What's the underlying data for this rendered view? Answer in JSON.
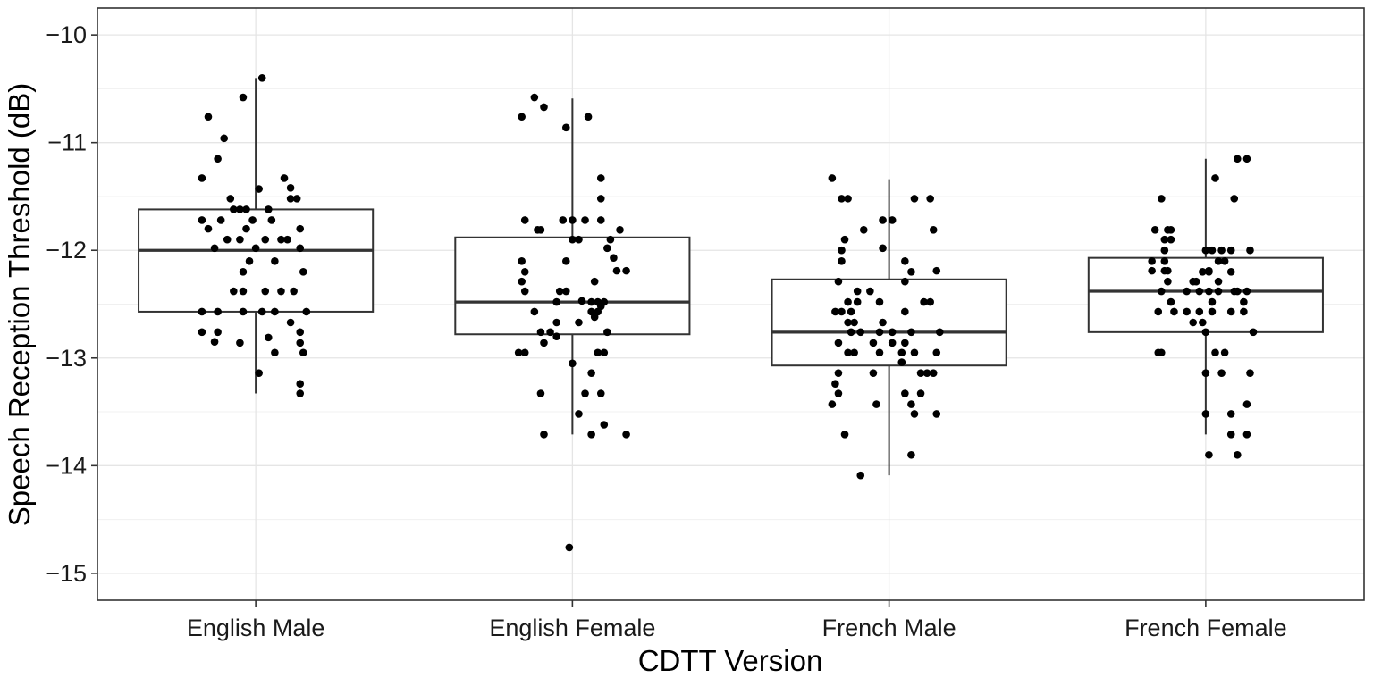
{
  "chart_data": {
    "type": "boxplot",
    "title": "",
    "xlabel": "CDTT Version",
    "ylabel": "Speech Reception Threshold (dB)",
    "ylim": [
      -15.25,
      -9.75
    ],
    "yticks": [
      -10,
      -11,
      -12,
      -13,
      -14,
      -15
    ],
    "ytick_labels": [
      "−10",
      "−11",
      "−12",
      "−13",
      "−14",
      "−15"
    ],
    "grid": true,
    "legend": "none",
    "categories": [
      "English Male",
      "English Female",
      "French Male",
      "French Female"
    ],
    "boxes": [
      {
        "q1": -12.57,
        "median": -12.0,
        "q3": -11.62,
        "whisker_low": -13.33,
        "whisker_high": -10.4
      },
      {
        "q1": -12.78,
        "median": -12.48,
        "q3": -11.88,
        "whisker_low": -13.71,
        "whisker_high": -10.59
      },
      {
        "q1": -13.07,
        "median": -12.76,
        "q3": -12.27,
        "whisker_low": -14.09,
        "whisker_high": -11.34
      },
      {
        "q1": -12.76,
        "median": -12.38,
        "q3": -12.07,
        "whisker_low": -13.71,
        "whisker_high": -11.15
      }
    ],
    "points": [
      [
        [
          0.02,
          -10.4
        ],
        [
          -0.04,
          -10.58
        ],
        [
          -0.15,
          -10.76
        ],
        [
          -0.1,
          -10.96
        ],
        [
          -0.12,
          -11.15
        ],
        [
          -0.17,
          -11.33
        ],
        [
          0.09,
          -11.33
        ],
        [
          0.11,
          -11.42
        ],
        [
          0.11,
          -11.52
        ],
        [
          0.13,
          -11.52
        ],
        [
          -0.08,
          -11.52
        ],
        [
          0.01,
          -11.43
        ],
        [
          -0.07,
          -11.62
        ],
        [
          -0.05,
          -11.62
        ],
        [
          -0.03,
          -11.62
        ],
        [
          0.04,
          -11.62
        ],
        [
          0.05,
          -11.72
        ],
        [
          -0.17,
          -11.72
        ],
        [
          -0.11,
          -11.72
        ],
        [
          -0.01,
          -11.72
        ],
        [
          0.03,
          -11.9
        ],
        [
          0.08,
          -11.9
        ],
        [
          0.1,
          -11.9
        ],
        [
          -0.05,
          -11.9
        ],
        [
          -0.09,
          -11.9
        ],
        [
          -0.15,
          -11.8
        ],
        [
          -0.03,
          -11.8
        ],
        [
          0.14,
          -11.8
        ],
        [
          0.0,
          -11.98
        ],
        [
          0.14,
          -11.98
        ],
        [
          -0.13,
          -11.98
        ],
        [
          -0.02,
          -12.1
        ],
        [
          0.06,
          -12.1
        ],
        [
          -0.04,
          -12.2
        ],
        [
          0.15,
          -12.2
        ],
        [
          0.08,
          -12.38
        ],
        [
          0.12,
          -12.38
        ],
        [
          -0.07,
          -12.38
        ],
        [
          -0.04,
          -12.38
        ],
        [
          0.03,
          -12.38
        ],
        [
          -0.17,
          -12.57
        ],
        [
          -0.12,
          -12.57
        ],
        [
          -0.04,
          -12.57
        ],
        [
          0.02,
          -12.57
        ],
        [
          0.06,
          -12.57
        ],
        [
          0.16,
          -12.57
        ],
        [
          0.11,
          -12.67
        ],
        [
          -0.17,
          -12.76
        ],
        [
          -0.12,
          -12.76
        ],
        [
          0.14,
          -12.76
        ],
        [
          0.04,
          -12.81
        ],
        [
          -0.13,
          -12.85
        ],
        [
          -0.05,
          -12.86
        ],
        [
          0.14,
          -12.86
        ],
        [
          0.06,
          -12.95
        ],
        [
          0.15,
          -12.95
        ],
        [
          0.01,
          -13.14
        ],
        [
          0.14,
          -13.24
        ],
        [
          0.14,
          -13.33
        ]
      ],
      [
        [
          -0.12,
          -10.58
        ],
        [
          -0.09,
          -10.67
        ],
        [
          -0.16,
          -10.76
        ],
        [
          0.05,
          -10.76
        ],
        [
          -0.02,
          -10.86
        ],
        [
          0.09,
          -11.33
        ],
        [
          0.09,
          -11.52
        ],
        [
          -0.15,
          -11.72
        ],
        [
          -0.03,
          -11.72
        ],
        [
          0.0,
          -11.72
        ],
        [
          0.04,
          -11.72
        ],
        [
          0.09,
          -11.72
        ],
        [
          -0.11,
          -11.81
        ],
        [
          -0.1,
          -11.81
        ],
        [
          0.15,
          -11.81
        ],
        [
          0.0,
          -11.9
        ],
        [
          0.02,
          -11.9
        ],
        [
          0.12,
          -11.9
        ],
        [
          0.11,
          -11.98
        ],
        [
          0.13,
          -12.07
        ],
        [
          -0.02,
          -12.1
        ],
        [
          -0.16,
          -12.1
        ],
        [
          0.14,
          -12.19
        ],
        [
          0.17,
          -12.19
        ],
        [
          -0.15,
          -12.2
        ],
        [
          0.07,
          -12.29
        ],
        [
          -0.16,
          -12.29
        ],
        [
          -0.15,
          -12.38
        ],
        [
          -0.04,
          -12.38
        ],
        [
          -0.02,
          -12.38
        ],
        [
          0.03,
          -12.47
        ],
        [
          0.06,
          -12.48
        ],
        [
          0.08,
          -12.48
        ],
        [
          0.1,
          -12.48
        ],
        [
          0.09,
          -12.52
        ],
        [
          0.06,
          -12.57
        ],
        [
          0.08,
          -12.57
        ],
        [
          -0.05,
          -12.48
        ],
        [
          -0.12,
          -12.57
        ],
        [
          0.07,
          -12.62
        ],
        [
          0.02,
          -12.67
        ],
        [
          -0.05,
          -12.67
        ],
        [
          0.11,
          -12.76
        ],
        [
          -0.07,
          -12.76
        ],
        [
          -0.1,
          -12.76
        ],
        [
          -0.05,
          -12.8
        ],
        [
          -0.09,
          -12.86
        ],
        [
          -0.17,
          -12.95
        ],
        [
          -0.15,
          -12.95
        ],
        [
          0.08,
          -12.95
        ],
        [
          0.1,
          -12.95
        ],
        [
          0.0,
          -13.05
        ],
        [
          0.06,
          -13.14
        ],
        [
          -0.1,
          -13.33
        ],
        [
          0.04,
          -13.33
        ],
        [
          0.09,
          -13.33
        ],
        [
          0.02,
          -13.52
        ],
        [
          0.1,
          -13.62
        ],
        [
          -0.09,
          -13.71
        ],
        [
          0.06,
          -13.71
        ],
        [
          0.17,
          -13.71
        ],
        [
          -0.01,
          -14.76
        ]
      ],
      [
        [
          -0.18,
          -11.33
        ],
        [
          -0.15,
          -11.52
        ],
        [
          -0.13,
          -11.52
        ],
        [
          0.08,
          -11.52
        ],
        [
          0.13,
          -11.52
        ],
        [
          -0.02,
          -11.72
        ],
        [
          0.01,
          -11.72
        ],
        [
          -0.08,
          -11.81
        ],
        [
          0.14,
          -11.81
        ],
        [
          -0.14,
          -11.9
        ],
        [
          -0.02,
          -11.98
        ],
        [
          -0.15,
          -12.0
        ],
        [
          -0.15,
          -12.1
        ],
        [
          0.05,
          -12.1
        ],
        [
          0.15,
          -12.19
        ],
        [
          0.07,
          -12.2
        ],
        [
          -0.16,
          -12.29
        ],
        [
          0.05,
          -12.29
        ],
        [
          -0.06,
          -12.38
        ],
        [
          -0.1,
          -12.38
        ],
        [
          -0.13,
          -12.48
        ],
        [
          -0.1,
          -12.48
        ],
        [
          -0.03,
          -12.48
        ],
        [
          0.11,
          -12.48
        ],
        [
          0.13,
          -12.48
        ],
        [
          -0.17,
          -12.57
        ],
        [
          -0.15,
          -12.57
        ],
        [
          -0.12,
          -12.57
        ],
        [
          0.05,
          -12.57
        ],
        [
          -0.13,
          -12.67
        ],
        [
          -0.11,
          -12.67
        ],
        [
          -0.02,
          -12.67
        ],
        [
          -0.12,
          -12.76
        ],
        [
          -0.09,
          -12.76
        ],
        [
          -0.03,
          -12.76
        ],
        [
          0.01,
          -12.76
        ],
        [
          0.07,
          -12.76
        ],
        [
          0.16,
          -12.76
        ],
        [
          -0.16,
          -12.86
        ],
        [
          -0.05,
          -12.86
        ],
        [
          0.01,
          -12.86
        ],
        [
          0.05,
          -12.86
        ],
        [
          -0.13,
          -12.95
        ],
        [
          -0.11,
          -12.95
        ],
        [
          -0.03,
          -12.95
        ],
        [
          0.04,
          -12.95
        ],
        [
          0.08,
          -12.95
        ],
        [
          0.15,
          -12.95
        ],
        [
          0.04,
          -13.04
        ],
        [
          -0.16,
          -13.14
        ],
        [
          -0.05,
          -13.14
        ],
        [
          0.1,
          -13.14
        ],
        [
          0.12,
          -13.14
        ],
        [
          0.14,
          -13.14
        ],
        [
          -0.17,
          -13.24
        ],
        [
          -0.16,
          -13.33
        ],
        [
          0.05,
          -13.33
        ],
        [
          0.1,
          -13.33
        ],
        [
          -0.04,
          -13.43
        ],
        [
          -0.18,
          -13.43
        ],
        [
          0.07,
          -13.43
        ],
        [
          0.08,
          -13.52
        ],
        [
          0.15,
          -13.52
        ],
        [
          -0.14,
          -13.71
        ],
        [
          0.07,
          -13.9
        ],
        [
          -0.09,
          -14.09
        ]
      ],
      [
        [
          0.13,
          -11.15
        ],
        [
          0.1,
          -11.15
        ],
        [
          0.03,
          -11.33
        ],
        [
          -0.14,
          -11.52
        ],
        [
          0.09,
          -11.52
        ],
        [
          -0.16,
          -11.81
        ],
        [
          -0.12,
          -11.81
        ],
        [
          -0.11,
          -11.81
        ],
        [
          -0.11,
          -11.9
        ],
        [
          -0.13,
          -11.9
        ],
        [
          -0.13,
          -12.0
        ],
        [
          0.05,
          -12.0
        ],
        [
          0.08,
          -12.0
        ],
        [
          0.0,
          -12.0
        ],
        [
          0.02,
          -12.0
        ],
        [
          0.14,
          -12.0
        ],
        [
          -0.17,
          -12.1
        ],
        [
          -0.13,
          -12.1
        ],
        [
          0.04,
          -12.1
        ],
        [
          0.06,
          -12.1
        ],
        [
          -0.17,
          -12.19
        ],
        [
          -0.12,
          -12.19
        ],
        [
          0.01,
          -12.19
        ],
        [
          -0.13,
          -12.19
        ],
        [
          -0.01,
          -12.2
        ],
        [
          0.01,
          -12.2
        ],
        [
          0.08,
          -12.2
        ],
        [
          -0.12,
          -12.29
        ],
        [
          -0.04,
          -12.29
        ],
        [
          -0.03,
          -12.29
        ],
        [
          0.04,
          -12.29
        ],
        [
          -0.14,
          -12.38
        ],
        [
          -0.06,
          -12.38
        ],
        [
          -0.02,
          -12.38
        ],
        [
          0.01,
          -12.38
        ],
        [
          0.04,
          -12.38
        ],
        [
          0.09,
          -12.38
        ],
        [
          0.1,
          -12.38
        ],
        [
          0.13,
          -12.38
        ],
        [
          -0.11,
          -12.48
        ],
        [
          0.02,
          -12.48
        ],
        [
          0.12,
          -12.48
        ],
        [
          -0.15,
          -12.57
        ],
        [
          -0.1,
          -12.57
        ],
        [
          -0.06,
          -12.57
        ],
        [
          -0.02,
          -12.57
        ],
        [
          0.02,
          -12.57
        ],
        [
          0.08,
          -12.57
        ],
        [
          0.12,
          -12.57
        ],
        [
          -0.04,
          -12.67
        ],
        [
          -0.01,
          -12.67
        ],
        [
          0.0,
          -12.76
        ],
        [
          0.15,
          -12.76
        ],
        [
          -0.15,
          -12.95
        ],
        [
          -0.14,
          -12.95
        ],
        [
          0.03,
          -12.95
        ],
        [
          0.06,
          -12.95
        ],
        [
          0.0,
          -13.14
        ],
        [
          0.05,
          -13.14
        ],
        [
          0.14,
          -13.14
        ],
        [
          0.13,
          -13.43
        ],
        [
          0.0,
          -13.52
        ],
        [
          0.08,
          -13.52
        ],
        [
          0.13,
          -13.71
        ],
        [
          0.08,
          -13.71
        ],
        [
          0.01,
          -13.9
        ],
        [
          0.1,
          -13.9
        ]
      ]
    ]
  }
}
